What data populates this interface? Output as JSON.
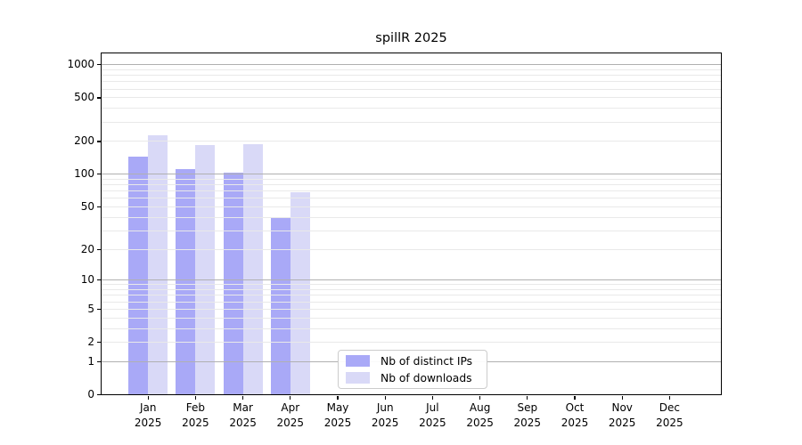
{
  "figure": {
    "title": "spillR 2025"
  },
  "chart_data": {
    "type": "bar",
    "title": "spillR 2025",
    "year_label": "2025",
    "categories": [
      "Jan",
      "Feb",
      "Mar",
      "Apr",
      "May",
      "Jun",
      "Jul",
      "Aug",
      "Sep",
      "Oct",
      "Nov",
      "Dec"
    ],
    "series": [
      {
        "name": "Nb of distinct IPs",
        "color": "#a9a9f7",
        "values": [
          145,
          111,
          103,
          40,
          0,
          0,
          0,
          0,
          0,
          0,
          0,
          0
        ]
      },
      {
        "name": "Nb of downloads",
        "color": "#d9d9f7",
        "values": [
          228,
          185,
          190,
          68,
          0,
          0,
          0,
          0,
          0,
          0,
          0,
          0
        ]
      }
    ],
    "xlabel": "",
    "ylabel": "",
    "yscale": "log(1+x)",
    "y_tick_values": [
      0,
      1,
      2,
      5,
      10,
      20,
      50,
      100,
      200,
      500,
      1000
    ],
    "y_major_gridline_values": [
      1,
      10,
      100,
      1000
    ],
    "ylim": [
      0,
      1295
    ],
    "grid": "on",
    "legend_position": "lower-center"
  },
  "colors": {
    "background": "#ffffff",
    "major_grid": "#b0b0b0",
    "minor_grid": "#e9e9e9",
    "spine": "#000000",
    "text": "#000000",
    "legend_border": "#cccccc"
  }
}
